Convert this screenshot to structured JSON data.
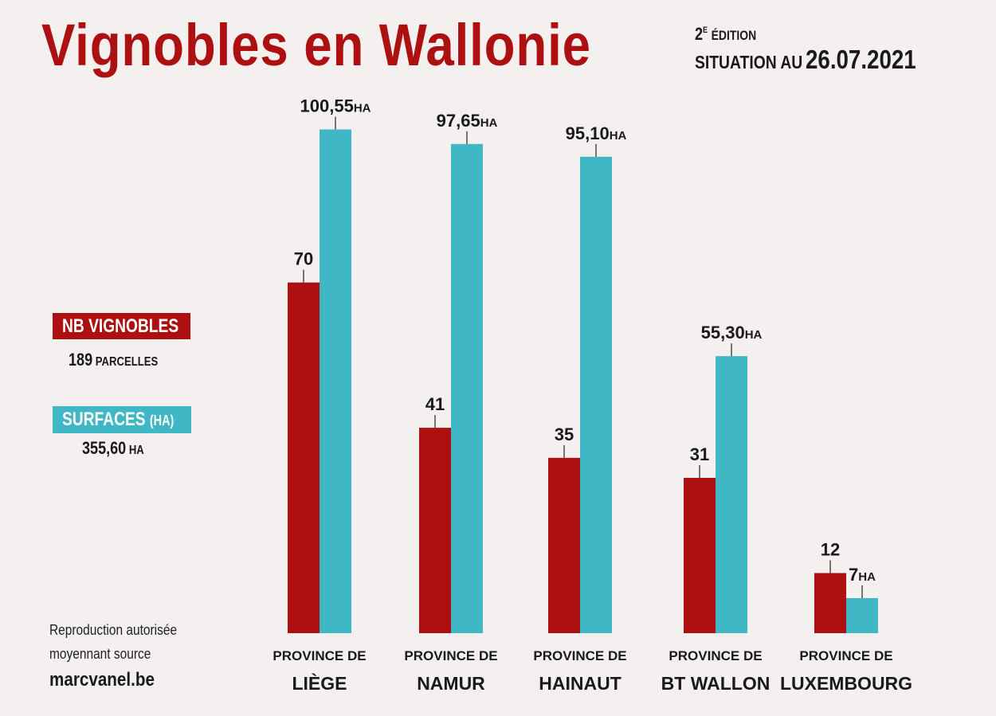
{
  "title": "Vignobles en Wallonie",
  "edition": {
    "number": "2",
    "sup": "E",
    "word": "ÉDITION"
  },
  "situation": {
    "label": "SITUATION AU",
    "date": "26.07.2021"
  },
  "legend": {
    "vignobles": {
      "label": "NB VIGNOBLES",
      "total": "189",
      "total_unit": "PARCELLES",
      "color": "#ad1010"
    },
    "surfaces": {
      "label": "SURFACES",
      "label_unit": "(HA)",
      "total": "355,60",
      "total_unit": "HA",
      "color": "#40b7c4"
    }
  },
  "credit": {
    "line1": "Reproduction autorisée",
    "line2": "moyennant source",
    "site": "marcvanel.be"
  },
  "chart_data": {
    "type": "bar",
    "categories": [
      {
        "prefix": "PROVINCE DE",
        "name": "LIÈGE"
      },
      {
        "prefix": "PROVINCE DE",
        "name": "NAMUR"
      },
      {
        "prefix": "PROVINCE DE",
        "name": "HAINAUT"
      },
      {
        "prefix": "PROVINCE DE",
        "name": "BT WALLON"
      },
      {
        "prefix": "PROVINCE DE",
        "name": "LUXEMBOURG"
      }
    ],
    "series": [
      {
        "name": "NB VIGNOBLES",
        "color": "#ad1010",
        "values": [
          70,
          41,
          35,
          31,
          12
        ],
        "labels": [
          "70",
          "41",
          "35",
          "31",
          "12"
        ],
        "unit": ""
      },
      {
        "name": "SURFACES (HA)",
        "color": "#40b7c4",
        "values": [
          100.55,
          97.65,
          95.1,
          55.3,
          7
        ],
        "labels": [
          "100,55",
          "97,65",
          "95,10",
          "55,30",
          "7"
        ],
        "unit": "HA"
      }
    ]
  }
}
